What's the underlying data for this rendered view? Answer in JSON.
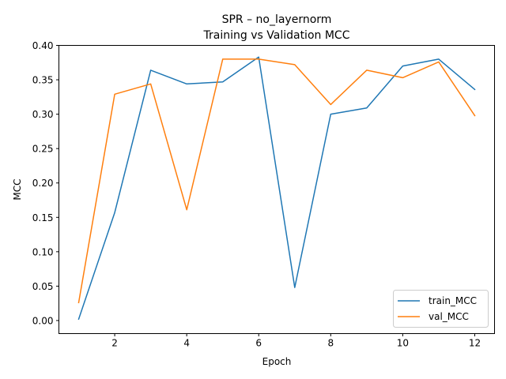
{
  "chart_data": {
    "type": "line",
    "title": "SPR – no_layernorm",
    "subtitle": "Training vs Validation MCC",
    "xlabel": "Epoch",
    "ylabel": "MCC",
    "xlim": [
      0.45,
      12.55
    ],
    "ylim": [
      -0.019,
      0.4
    ],
    "xticks": [
      2,
      4,
      6,
      8,
      10,
      12
    ],
    "xtick_labels": [
      "2",
      "4",
      "6",
      "8",
      "10",
      "12"
    ],
    "yticks": [
      0.0,
      0.05,
      0.1,
      0.15,
      0.2,
      0.25,
      0.3,
      0.35,
      0.4
    ],
    "ytick_labels": [
      "0.00",
      "0.05",
      "0.10",
      "0.15",
      "0.20",
      "0.25",
      "0.30",
      "0.35",
      "0.40"
    ],
    "grid": false,
    "legend_position": "lower-right",
    "x": [
      1,
      2,
      3,
      4,
      5,
      6,
      7,
      8,
      9,
      10,
      11,
      12
    ],
    "series": [
      {
        "name": "train_MCC",
        "color": "#1f77b4",
        "values": [
          0.002,
          0.157,
          0.364,
          0.344,
          0.347,
          0.383,
          0.048,
          0.3,
          0.309,
          0.37,
          0.38,
          0.336
        ]
      },
      {
        "name": "val_MCC",
        "color": "#ff7f0e",
        "values": [
          0.026,
          0.329,
          0.344,
          0.161,
          0.38,
          0.38,
          0.372,
          0.314,
          0.364,
          0.353,
          0.376,
          0.298
        ]
      }
    ]
  }
}
